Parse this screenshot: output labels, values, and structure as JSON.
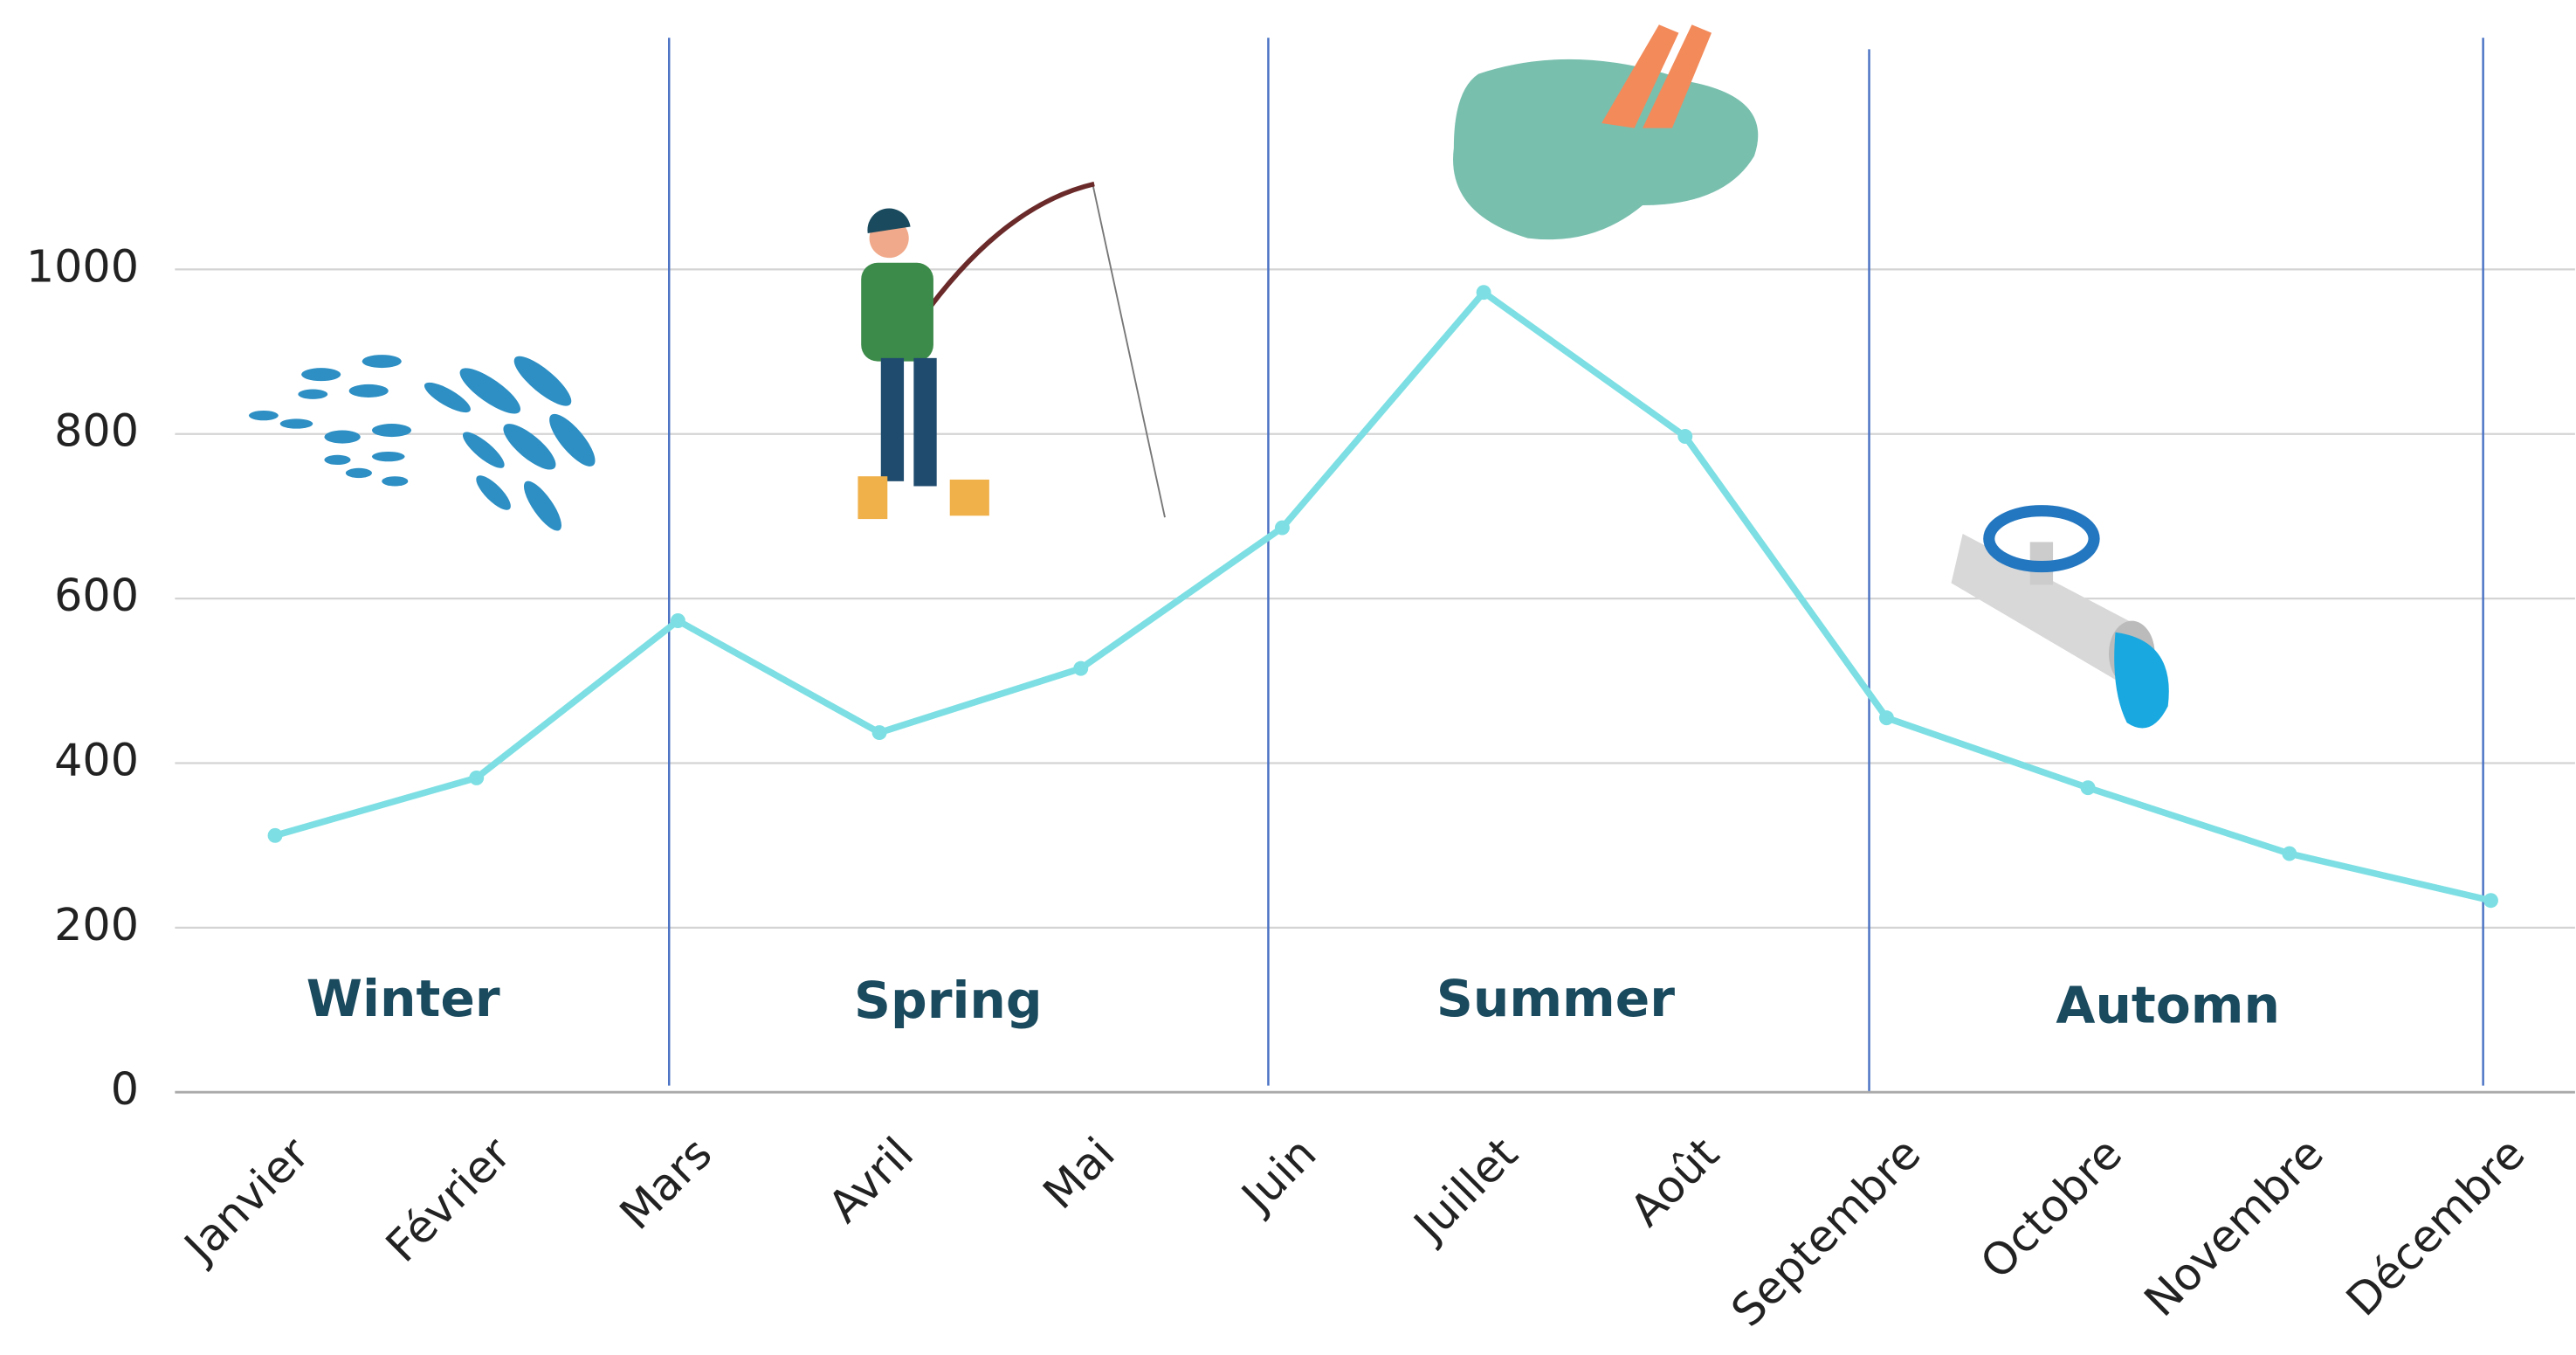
{
  "chart_data": {
    "type": "line",
    "categories": [
      "Janvier",
      "Février",
      "Mars",
      "Avril",
      "Mai",
      "Juin",
      "Juillet",
      "Août",
      "Septembre",
      "Octobre",
      "Novembre",
      "Décembre"
    ],
    "values": [
      312,
      382,
      573,
      437,
      515,
      686,
      972,
      797,
      455,
      370,
      290,
      233
    ],
    "color": "#7ddfe3",
    "ylim": [
      0,
      1000
    ],
    "yticks": [
      0,
      200,
      400,
      600,
      800,
      1000
    ],
    "grid": true,
    "annotations": [
      "Winter",
      "Spring",
      "Summer",
      "Automn"
    ]
  }
}
